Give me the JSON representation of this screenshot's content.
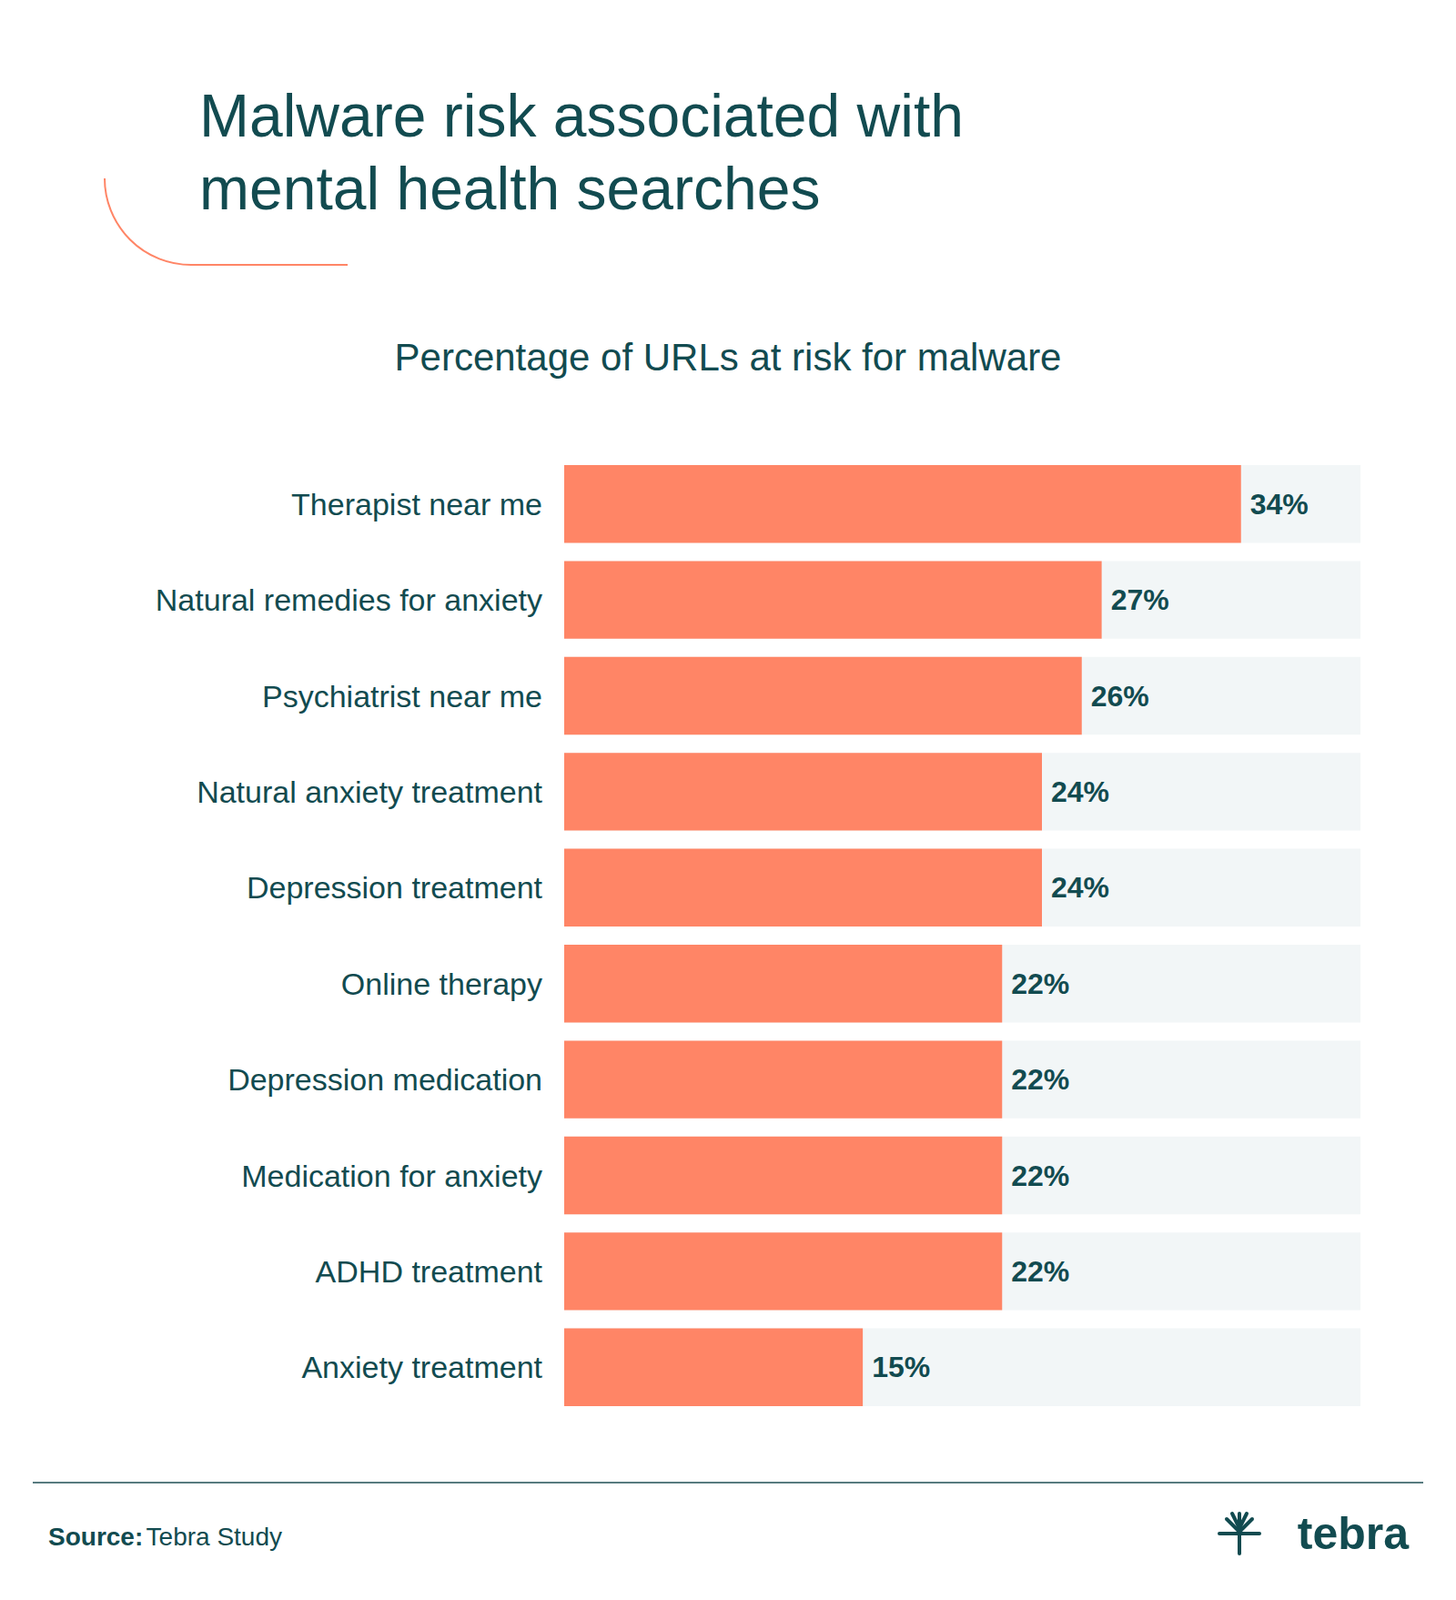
{
  "chart_data": {
    "type": "bar",
    "title": "Malware risk associated with\nmental health searches",
    "subtitle": "Percentage of URLs at risk for malware",
    "categories": [
      "Therapist near me",
      "Natural remedies for anxiety",
      "Psychiatrist near me",
      "Natural anxiety treatment",
      "Depression treatment",
      "Online therapy",
      "Depression medication",
      "Medication for anxiety",
      "ADHD treatment",
      "Anxiety treatment"
    ],
    "values": [
      34,
      27,
      26,
      24,
      24,
      22,
      22,
      22,
      22,
      15
    ],
    "value_labels": [
      "34%",
      "27%",
      "26%",
      "24%",
      "24%",
      "22%",
      "22%",
      "22%",
      "22%",
      "15%"
    ],
    "color": "#ff8566",
    "xlim": [
      0,
      40
    ],
    "orientation": "horizontal",
    "data_labels": true,
    "tick_labels": "y",
    "grid": false,
    "source": {
      "label": "Source:",
      "text": "Tebra Study"
    },
    "logo": "tebra"
  }
}
